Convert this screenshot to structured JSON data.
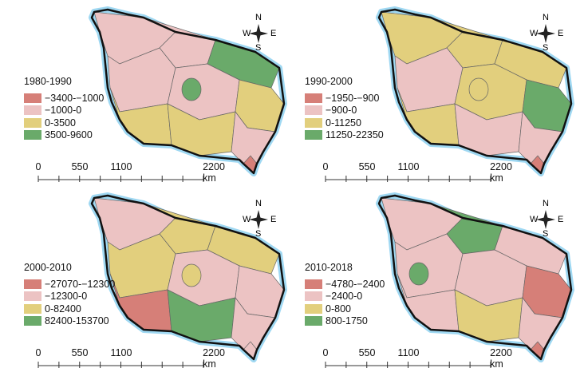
{
  "figure": {
    "scale_labels": [
      "0",
      "550",
      "1100",
      "2200 km"
    ],
    "compass": {
      "n": "N",
      "s": "S",
      "e": "E",
      "w": "W"
    },
    "panels": [
      {
        "title": "1980-1990",
        "legend": [
          "−3400-−1000",
          "−1000-0",
          "0-3500",
          "3500-9600"
        ],
        "region_classes": [
          1,
          1,
          3,
          1,
          1,
          2,
          2,
          2,
          1
        ],
        "blob_class": 3,
        "tip_class": 0
      },
      {
        "title": "1990-2000",
        "legend": [
          "−1950-−900",
          "−900-0",
          "0-11250",
          "11250-22350"
        ],
        "region_classes": [
          2,
          2,
          2,
          1,
          2,
          3,
          2,
          1,
          1
        ],
        "blob_class": 2,
        "tip_class": 0
      },
      {
        "title": "2000-2010",
        "legend": [
          "−27070-−12300",
          "−12300-0",
          "0-82400",
          "82400-153700"
        ],
        "region_classes": [
          1,
          2,
          2,
          2,
          1,
          1,
          0,
          3,
          1
        ],
        "blob_class": 2,
        "tip_class": 1
      },
      {
        "title": "2010-2018",
        "legend": [
          "−4780-−2400",
          "−2400-0",
          "0-800",
          "800-1750"
        ],
        "region_classes": [
          1,
          3,
          1,
          1,
          1,
          0,
          1,
          2,
          1
        ],
        "blob_class": 3,
        "tip_class": 0
      }
    ],
    "class_colors": [
      "#d67f78",
      "#ecc3c3",
      "#e2cf7d",
      "#6aaa6a"
    ]
  }
}
